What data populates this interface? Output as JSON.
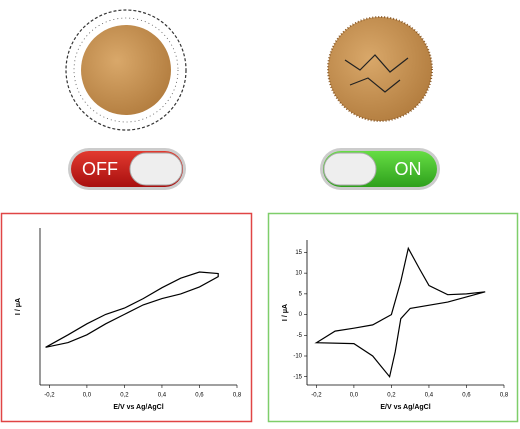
{
  "switches": [
    {
      "label": "OFF"
    },
    {
      "label": "ON"
    }
  ],
  "chart_data": [
    {
      "type": "line",
      "x_label": "E/V vs Ag/AgCl",
      "y_label": "I / μA",
      "color": "#000000",
      "x": [
        -0.22,
        -0.1,
        0.0,
        0.1,
        0.2,
        0.3,
        0.4,
        0.5,
        0.6,
        0.7,
        0.7,
        0.6,
        0.5,
        0.4,
        0.3,
        0.2,
        0.1,
        0.0,
        -0.1,
        -0.22
      ],
      "values": [
        -5.2,
        -4.6,
        -3.6,
        -2.2,
        -1.0,
        0.2,
        1.0,
        1.6,
        2.5,
        3.8,
        4.2,
        4.4,
        3.6,
        2.4,
        1.0,
        -0.2,
        -1.0,
        -2.2,
        -3.6,
        -5.2
      ],
      "xlim": [
        -0.25,
        0.8
      ],
      "ylim": [
        -10,
        10
      ],
      "xticks": [
        {
          "value": -0.2,
          "label": "-0,2"
        },
        {
          "value": 0.0,
          "label": "0,0"
        },
        {
          "value": 0.2,
          "label": "0,2"
        },
        {
          "value": 0.4,
          "label": "0,4"
        },
        {
          "value": 0.6,
          "label": "0,6"
        },
        {
          "value": 0.8,
          "label": "0,8"
        }
      ]
    },
    {
      "type": "line",
      "x_label": "E/V vs Ag/AgCl",
      "y_label": "I / μA",
      "color": "#000000",
      "x": [
        -0.2,
        -0.1,
        0.0,
        0.1,
        0.2,
        0.25,
        0.29,
        0.35,
        0.4,
        0.5,
        0.6,
        0.7,
        0.5,
        0.3,
        0.25,
        0.22,
        0.19,
        0.1,
        0.0,
        -0.2
      ],
      "values": [
        -6.8,
        -4.0,
        -3.3,
        -2.5,
        0.0,
        8.0,
        16.0,
        11.0,
        7.0,
        4.8,
        5.0,
        5.5,
        3.0,
        1.5,
        -1.0,
        -9.0,
        -15.0,
        -10.0,
        -7.0,
        -6.8
      ],
      "xlim": [
        -0.25,
        0.8
      ],
      "ylim": [
        -17,
        18
      ],
      "xticks": [
        {
          "value": -0.2,
          "label": "-0,2"
        },
        {
          "value": 0.0,
          "label": "0,0"
        },
        {
          "value": 0.2,
          "label": "0,2"
        },
        {
          "value": 0.4,
          "label": "0,4"
        },
        {
          "value": 0.6,
          "label": "0,6"
        },
        {
          "value": 0.8,
          "label": "0,8"
        }
      ],
      "yticks": [
        -15,
        -10,
        -5,
        0,
        5,
        10,
        15
      ]
    }
  ]
}
